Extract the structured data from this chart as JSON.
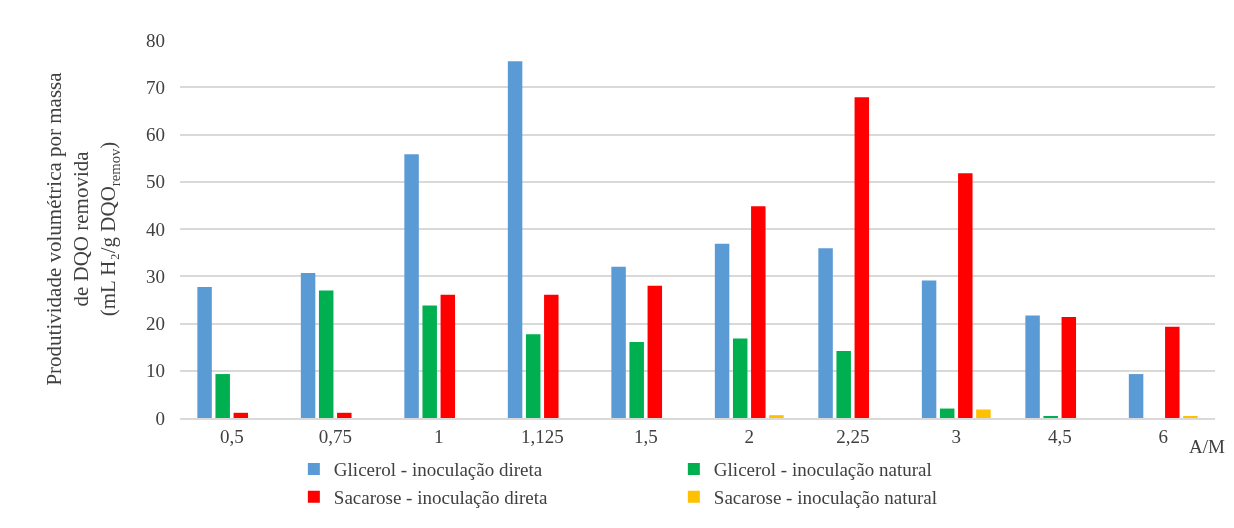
{
  "chart_data": {
    "type": "bar",
    "categories": [
      "0,5",
      "0,75",
      "1",
      "1,125",
      "1,5",
      "2",
      "2,25",
      "3",
      "4,5",
      "6"
    ],
    "series": [
      {
        "name": "Glicerol - inoculação direta",
        "color": "#5b9bd5",
        "values": [
          27.7,
          30.7,
          55.8,
          75.5,
          32.0,
          36.9,
          35.9,
          29.1,
          21.7,
          9.3
        ]
      },
      {
        "name": "Glicerol - inoculação natural",
        "color": "#00b050",
        "values": [
          9.3,
          27.0,
          23.8,
          17.7,
          16.1,
          16.8,
          14.2,
          2.0,
          0.3,
          null
        ]
      },
      {
        "name": "Sacarose - inoculação direta",
        "color": "#ff0000",
        "values": [
          1.1,
          1.1,
          26.1,
          26.1,
          28.0,
          44.8,
          67.9,
          51.8,
          21.4,
          19.3
        ]
      },
      {
        "name": "Sacarose - inoculação natural",
        "color": "#ffc000",
        "values": [
          null,
          null,
          null,
          null,
          null,
          0.6,
          null,
          1.8,
          null,
          0.3
        ]
      }
    ],
    "xlabel": "A/M",
    "ylabel": "Produtividade volumétrica por massa\nde DQO removida\n(mL H₂/g DQO$_{remov}$)",
    "ylim": [
      0,
      80
    ],
    "yticks": [
      0,
      10,
      20,
      30,
      40,
      50,
      60,
      70,
      80
    ],
    "grid": "y",
    "legend": "bottom"
  }
}
